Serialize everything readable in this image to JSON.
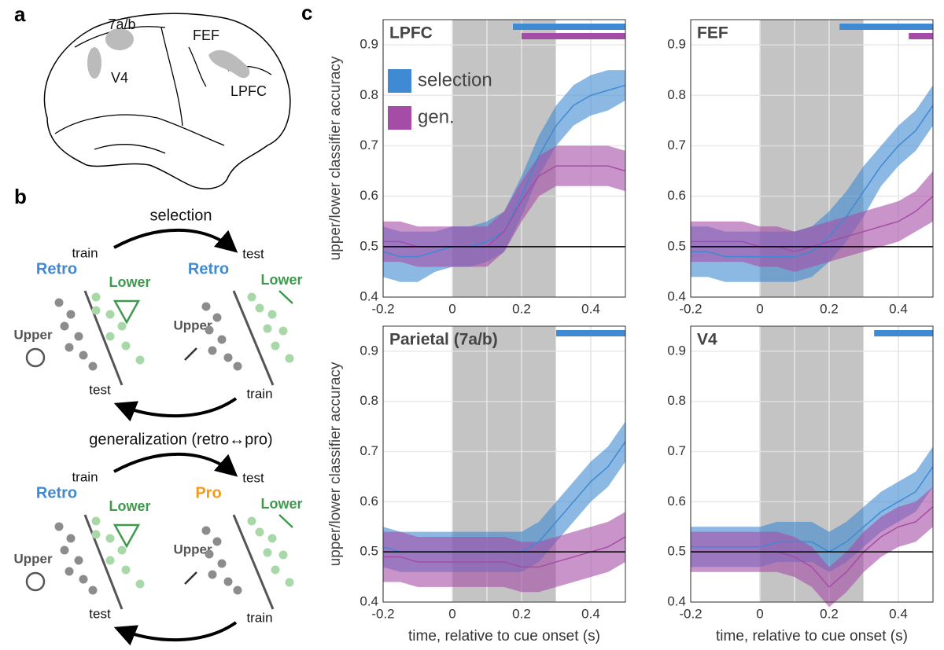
{
  "panel_labels": [
    "a",
    "b",
    "c"
  ],
  "brain": {
    "labels": [
      "7a/b",
      "FEF",
      "V4",
      "LPFC"
    ]
  },
  "diagram": {
    "top": {
      "title": "selection",
      "train_left": "train",
      "test_right": "test",
      "left_task": "Retro",
      "left_lower": "Lower",
      "right_task": "Retro",
      "right_lower": "Lower",
      "left_upper": "Upper",
      "right_upper": "Upper",
      "test_left": "test",
      "train_right": "train"
    },
    "bottom": {
      "title": "generalization (retro↔pro)",
      "train_left": "train",
      "test_right": "test",
      "left_task": "Retro",
      "left_lower": "Lower",
      "right_task": "Pro",
      "right_lower": "Lower",
      "left_upper": "Upper",
      "right_upper": "Upper",
      "test_left": "test",
      "train_right": "train"
    }
  },
  "chart_data": [
    {
      "type": "line",
      "title": "LPFC",
      "ylabel": "upper/lower classifier accuracy",
      "legend": true,
      "x": [
        -0.2,
        -0.15,
        -0.1,
        -0.05,
        0,
        0.05,
        0.1,
        0.15,
        0.2,
        0.25,
        0.3,
        0.35,
        0.4,
        0.45,
        0.5
      ],
      "xlim": [
        -0.2,
        0.5
      ],
      "ylim": [
        0.4,
        0.95
      ],
      "xticks": [
        -0.2,
        0,
        0.2,
        0.4
      ],
      "x_minor_ticks": [
        -0.1,
        0.1,
        0.3
      ],
      "yticks": [
        0.4,
        0.5,
        0.6,
        0.7,
        0.8,
        0.9
      ],
      "shade": [
        0,
        0.3
      ],
      "reference_line": 0.5,
      "grid": true,
      "series": [
        {
          "name": "selection",
          "color": "#3f8ad2",
          "values": [
            0.49,
            0.48,
            0.48,
            0.49,
            0.5,
            0.5,
            0.51,
            0.53,
            0.6,
            0.68,
            0.74,
            0.78,
            0.8,
            0.81,
            0.82
          ],
          "errors": [
            0.05,
            0.05,
            0.05,
            0.04,
            0.04,
            0.04,
            0.04,
            0.04,
            0.04,
            0.04,
            0.04,
            0.04,
            0.04,
            0.04,
            0.03
          ],
          "significance": [
            0.175,
            0.5
          ]
        },
        {
          "name": "gen.",
          "color": "#a54da6",
          "values": [
            0.51,
            0.51,
            0.5,
            0.5,
            0.5,
            0.5,
            0.5,
            0.53,
            0.59,
            0.64,
            0.66,
            0.66,
            0.66,
            0.66,
            0.65
          ],
          "errors": [
            0.04,
            0.04,
            0.04,
            0.04,
            0.04,
            0.04,
            0.04,
            0.04,
            0.04,
            0.04,
            0.04,
            0.04,
            0.04,
            0.04,
            0.04
          ],
          "significance": [
            0.2,
            0.5
          ]
        }
      ]
    },
    {
      "type": "line",
      "title": "FEF",
      "legend": false,
      "x": [
        -0.2,
        -0.15,
        -0.1,
        -0.05,
        0,
        0.05,
        0.1,
        0.15,
        0.2,
        0.25,
        0.3,
        0.35,
        0.4,
        0.45,
        0.5
      ],
      "xlim": [
        -0.2,
        0.5
      ],
      "ylim": [
        0.4,
        0.95
      ],
      "xticks": [
        -0.2,
        0,
        0.2,
        0.4
      ],
      "x_minor_ticks": [
        -0.1,
        0.1,
        0.3
      ],
      "yticks": [
        0.4,
        0.5,
        0.6,
        0.7,
        0.8,
        0.9
      ],
      "shade": [
        0,
        0.3
      ],
      "reference_line": 0.5,
      "grid": true,
      "series": [
        {
          "name": "selection",
          "color": "#3f8ad2",
          "values": [
            0.49,
            0.49,
            0.48,
            0.48,
            0.48,
            0.48,
            0.48,
            0.49,
            0.52,
            0.56,
            0.61,
            0.66,
            0.7,
            0.73,
            0.78
          ],
          "errors": [
            0.05,
            0.05,
            0.05,
            0.05,
            0.05,
            0.05,
            0.05,
            0.05,
            0.05,
            0.05,
            0.05,
            0.04,
            0.04,
            0.04,
            0.04
          ],
          "significance": [
            0.23,
            0.5
          ]
        },
        {
          "name": "gen.",
          "color": "#a54da6",
          "values": [
            0.51,
            0.51,
            0.51,
            0.51,
            0.5,
            0.5,
            0.49,
            0.5,
            0.51,
            0.52,
            0.53,
            0.54,
            0.55,
            0.57,
            0.6
          ],
          "errors": [
            0.04,
            0.04,
            0.04,
            0.04,
            0.04,
            0.04,
            0.04,
            0.04,
            0.04,
            0.04,
            0.04,
            0.04,
            0.04,
            0.04,
            0.05
          ],
          "significance": [
            0.43,
            0.5
          ]
        }
      ]
    },
    {
      "type": "line",
      "title": "Parietal (7a/b)",
      "ylabel": "upper/lower classifier accuracy",
      "xlabel": "time, relative to cue onset (s)",
      "legend": false,
      "x": [
        -0.2,
        -0.15,
        -0.1,
        -0.05,
        0,
        0.05,
        0.1,
        0.15,
        0.2,
        0.25,
        0.3,
        0.35,
        0.4,
        0.45,
        0.5
      ],
      "xlim": [
        -0.2,
        0.5
      ],
      "ylim": [
        0.4,
        0.95
      ],
      "xticks": [
        -0.2,
        0,
        0.2,
        0.4
      ],
      "x_minor_ticks": [
        -0.1,
        0.1,
        0.3
      ],
      "yticks": [
        0.4,
        0.5,
        0.6,
        0.7,
        0.8,
        0.9
      ],
      "shade": [
        0,
        0.3
      ],
      "reference_line": 0.5,
      "grid": true,
      "series": [
        {
          "name": "selection",
          "color": "#3f8ad2",
          "values": [
            0.51,
            0.5,
            0.5,
            0.5,
            0.5,
            0.5,
            0.5,
            0.5,
            0.5,
            0.52,
            0.56,
            0.6,
            0.64,
            0.67,
            0.72
          ],
          "errors": [
            0.04,
            0.04,
            0.04,
            0.04,
            0.04,
            0.04,
            0.04,
            0.04,
            0.04,
            0.04,
            0.04,
            0.04,
            0.04,
            0.04,
            0.04
          ],
          "significance": [
            0.3,
            0.5
          ]
        },
        {
          "name": "gen.",
          "color": "#a54da6",
          "values": [
            0.49,
            0.49,
            0.48,
            0.48,
            0.48,
            0.48,
            0.48,
            0.48,
            0.47,
            0.47,
            0.48,
            0.49,
            0.5,
            0.51,
            0.53
          ],
          "errors": [
            0.05,
            0.05,
            0.05,
            0.05,
            0.05,
            0.05,
            0.05,
            0.05,
            0.05,
            0.05,
            0.05,
            0.05,
            0.05,
            0.05,
            0.05
          ],
          "significance": null
        }
      ]
    },
    {
      "type": "line",
      "title": "V4",
      "xlabel": "time, relative to cue onset (s)",
      "legend": false,
      "x": [
        -0.2,
        -0.15,
        -0.1,
        -0.05,
        0,
        0.05,
        0.1,
        0.15,
        0.2,
        0.25,
        0.3,
        0.35,
        0.4,
        0.45,
        0.5
      ],
      "xlim": [
        -0.2,
        0.5
      ],
      "ylim": [
        0.4,
        0.95
      ],
      "xticks": [
        -0.2,
        0,
        0.2,
        0.4
      ],
      "x_minor_ticks": [
        -0.1,
        0.1,
        0.3
      ],
      "yticks": [
        0.4,
        0.5,
        0.6,
        0.7,
        0.8,
        0.9
      ],
      "shade": [
        0,
        0.3
      ],
      "reference_line": 0.5,
      "grid": true,
      "series": [
        {
          "name": "selection",
          "color": "#3f8ad2",
          "values": [
            0.51,
            0.51,
            0.51,
            0.51,
            0.51,
            0.52,
            0.52,
            0.52,
            0.5,
            0.52,
            0.55,
            0.58,
            0.6,
            0.62,
            0.67
          ],
          "errors": [
            0.04,
            0.04,
            0.04,
            0.04,
            0.04,
            0.04,
            0.04,
            0.04,
            0.04,
            0.04,
            0.04,
            0.04,
            0.04,
            0.04,
            0.04
          ],
          "significance": [
            0.33,
            0.5
          ]
        },
        {
          "name": "gen.",
          "color": "#a54da6",
          "values": [
            0.5,
            0.5,
            0.5,
            0.5,
            0.5,
            0.5,
            0.49,
            0.47,
            0.43,
            0.46,
            0.5,
            0.53,
            0.55,
            0.56,
            0.59
          ],
          "errors": [
            0.04,
            0.04,
            0.04,
            0.04,
            0.04,
            0.04,
            0.04,
            0.04,
            0.04,
            0.04,
            0.04,
            0.04,
            0.04,
            0.04,
            0.04
          ],
          "significance": null
        }
      ]
    }
  ]
}
